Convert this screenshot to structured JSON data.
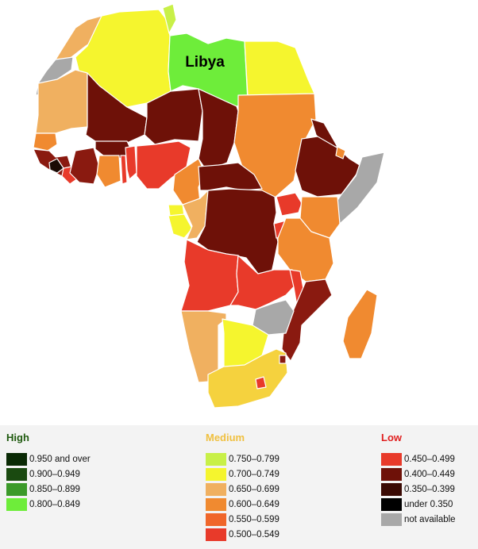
{
  "map": {
    "highlighted_country_label": "Libya",
    "countries": [
      {
        "id": "morocco",
        "color": "#f0b060"
      },
      {
        "id": "western-sahara",
        "color": "#a8a8a8"
      },
      {
        "id": "algeria",
        "color": "#f5f52e"
      },
      {
        "id": "tunisia",
        "color": "#c8f048"
      },
      {
        "id": "libya",
        "color": "#6eed3a"
      },
      {
        "id": "egypt",
        "color": "#f5f52e"
      },
      {
        "id": "mauritania",
        "color": "#f0b060"
      },
      {
        "id": "mali",
        "color": "#6e1108"
      },
      {
        "id": "niger",
        "color": "#6e1108"
      },
      {
        "id": "chad",
        "color": "#6e1108"
      },
      {
        "id": "sudan",
        "color": "#f08a30"
      },
      {
        "id": "eritrea",
        "color": "#6e1108"
      },
      {
        "id": "ethiopia",
        "color": "#6e1108"
      },
      {
        "id": "djibouti",
        "color": "#f08a30"
      },
      {
        "id": "somalia",
        "color": "#a8a8a8"
      },
      {
        "id": "senegal",
        "color": "#f08a30"
      },
      {
        "id": "west-coast-group",
        "color": "#8a1a10"
      },
      {
        "id": "sierra-leone",
        "color": "#1a0a05"
      },
      {
        "id": "liberia",
        "color": "#e83a2a"
      },
      {
        "id": "cote-divoire",
        "color": "#8a1a10"
      },
      {
        "id": "burkina-faso",
        "color": "#6e1108"
      },
      {
        "id": "ghana",
        "color": "#f08a30"
      },
      {
        "id": "togo",
        "color": "#e83a2a"
      },
      {
        "id": "benin",
        "color": "#e83a2a"
      },
      {
        "id": "nigeria",
        "color": "#e83a2a"
      },
      {
        "id": "cameroon",
        "color": "#f08a30"
      },
      {
        "id": "car",
        "color": "#6e1108"
      },
      {
        "id": "equatorial-guinea",
        "color": "#f5f52e"
      },
      {
        "id": "gabon",
        "color": "#f5f52e"
      },
      {
        "id": "congo",
        "color": "#f0b060"
      },
      {
        "id": "drc",
        "color": "#6e1108"
      },
      {
        "id": "uganda",
        "color": "#e83a2a"
      },
      {
        "id": "kenya",
        "color": "#f08a30"
      },
      {
        "id": "rwanda-burundi",
        "color": "#e83a2a"
      },
      {
        "id": "tanzania",
        "color": "#f08a30"
      },
      {
        "id": "angola",
        "color": "#e83a2a"
      },
      {
        "id": "zambia",
        "color": "#e83a2a"
      },
      {
        "id": "malawi",
        "color": "#e83a2a"
      },
      {
        "id": "mozambique",
        "color": "#8a1a10"
      },
      {
        "id": "zimbabwe",
        "color": "#a8a8a8"
      },
      {
        "id": "namibia",
        "color": "#f0b060"
      },
      {
        "id": "botswana",
        "color": "#f5f52e"
      },
      {
        "id": "south-africa",
        "color": "#f5d23e"
      },
      {
        "id": "lesotho",
        "color": "#e83a2a"
      },
      {
        "id": "swaziland",
        "color": "#8a1a10"
      },
      {
        "id": "madagascar",
        "color": "#f08a30"
      }
    ]
  },
  "legend": {
    "groups": [
      {
        "title": "High",
        "title_color": "#1f5a0f",
        "items": [
          {
            "label": "0.950 and over",
            "color": "#0a2a05"
          },
          {
            "label": "0.900–0.949",
            "color": "#1a4a10"
          },
          {
            "label": "0.850–0.899",
            "color": "#3c9a2a"
          },
          {
            "label": "0.800–0.849",
            "color": "#6eed3a"
          }
        ]
      },
      {
        "title": "Medium",
        "title_color": "#f0c040",
        "items": [
          {
            "label": "0.750–0.799",
            "color": "#c8f048"
          },
          {
            "label": "0.700–0.749",
            "color": "#f5f52e"
          },
          {
            "label": "0.650–0.699",
            "color": "#f0b060"
          },
          {
            "label": "0.600–0.649",
            "color": "#f08a30"
          },
          {
            "label": "0.550–0.599",
            "color": "#f0662a"
          },
          {
            "label": "0.500–0.549",
            "color": "#e83a2a"
          }
        ]
      },
      {
        "title": "Low",
        "title_color": "#e02020",
        "items": [
          {
            "label": "0.450–0.499",
            "color": "#e83a2a"
          },
          {
            "label": "0.400–0.449",
            "color": "#6e1108"
          },
          {
            "label": "0.350–0.399",
            "color": "#3a0a04"
          },
          {
            "label": "under 0.350",
            "color": "#000000"
          },
          {
            "label": "not available",
            "color": "#a8a8a8"
          }
        ]
      }
    ]
  }
}
